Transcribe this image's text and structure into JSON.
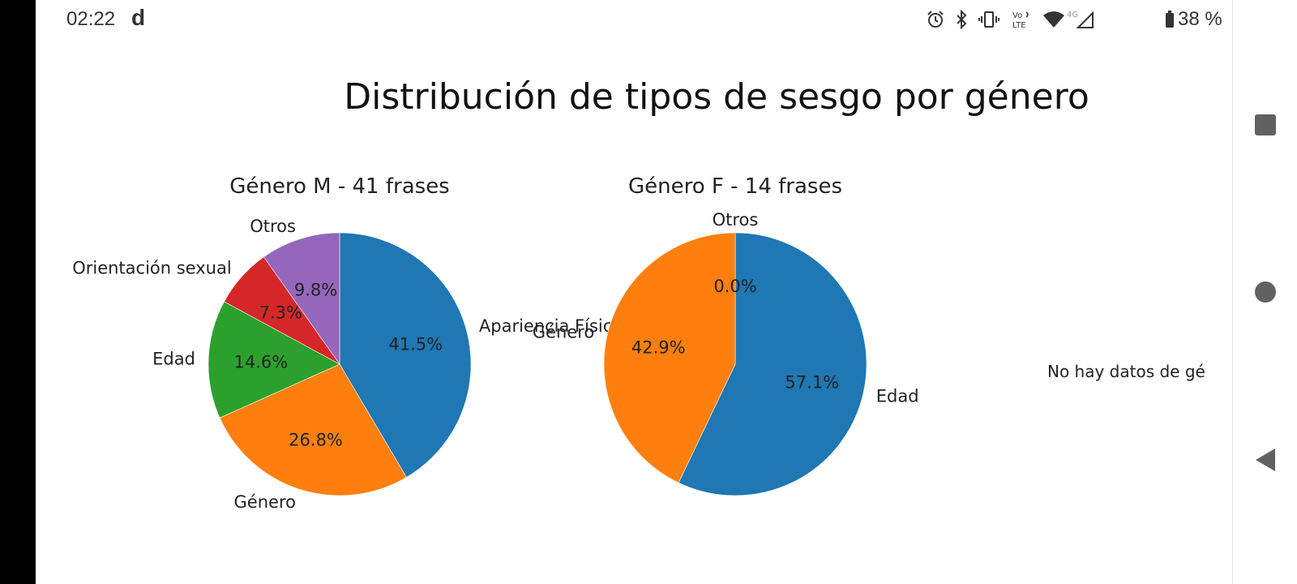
{
  "status_bar": {
    "time": "02:22",
    "app_icon": "d",
    "battery": "38 %",
    "icons": [
      "alarm-icon",
      "bluetooth-icon",
      "vibrate-icon",
      "volte-icon",
      "wifi-icon",
      "signal-4g-icon",
      "battery-icon"
    ]
  },
  "nav_bar": {
    "buttons": [
      "recents-square-icon",
      "home-circle-icon",
      "back-triangle-icon"
    ]
  },
  "chart_data": {
    "type": "pie",
    "title": "Distribución de tipos de sesgo por género",
    "colors": {
      "blue": "#1f77b4",
      "orange": "#ff7f0e",
      "green": "#2ca02c",
      "red": "#d62728",
      "purple": "#9467bd"
    },
    "panels": [
      {
        "title": "Género M - 41 frases",
        "slices": [
          {
            "label": "Apariencia Física",
            "value": 41.5,
            "pct_label": "41.5%",
            "color": "#1f77b4"
          },
          {
            "label": "Género",
            "value": 26.8,
            "pct_label": "26.8%",
            "color": "#ff7f0e"
          },
          {
            "label": "Edad",
            "value": 14.6,
            "pct_label": "14.6%",
            "color": "#2ca02c"
          },
          {
            "label": "Orientación sexual",
            "value": 7.3,
            "pct_label": "7.3%",
            "color": "#d62728"
          },
          {
            "label": "Otros",
            "value": 9.8,
            "pct_label": "9.8%",
            "color": "#9467bd"
          }
        ]
      },
      {
        "title": "Género F - 14 frases",
        "slices": [
          {
            "label": "Edad",
            "value": 57.1,
            "pct_label": "57.1%",
            "color": "#1f77b4"
          },
          {
            "label": "Género",
            "value": 42.9,
            "pct_label": "42.9%",
            "color": "#ff7f0e"
          },
          {
            "label": "Otros",
            "value": 0.0,
            "pct_label": "0.0%",
            "color": "#2ca02c"
          }
        ]
      }
    ],
    "empty_panel_text": "No hay datos de géner"
  }
}
